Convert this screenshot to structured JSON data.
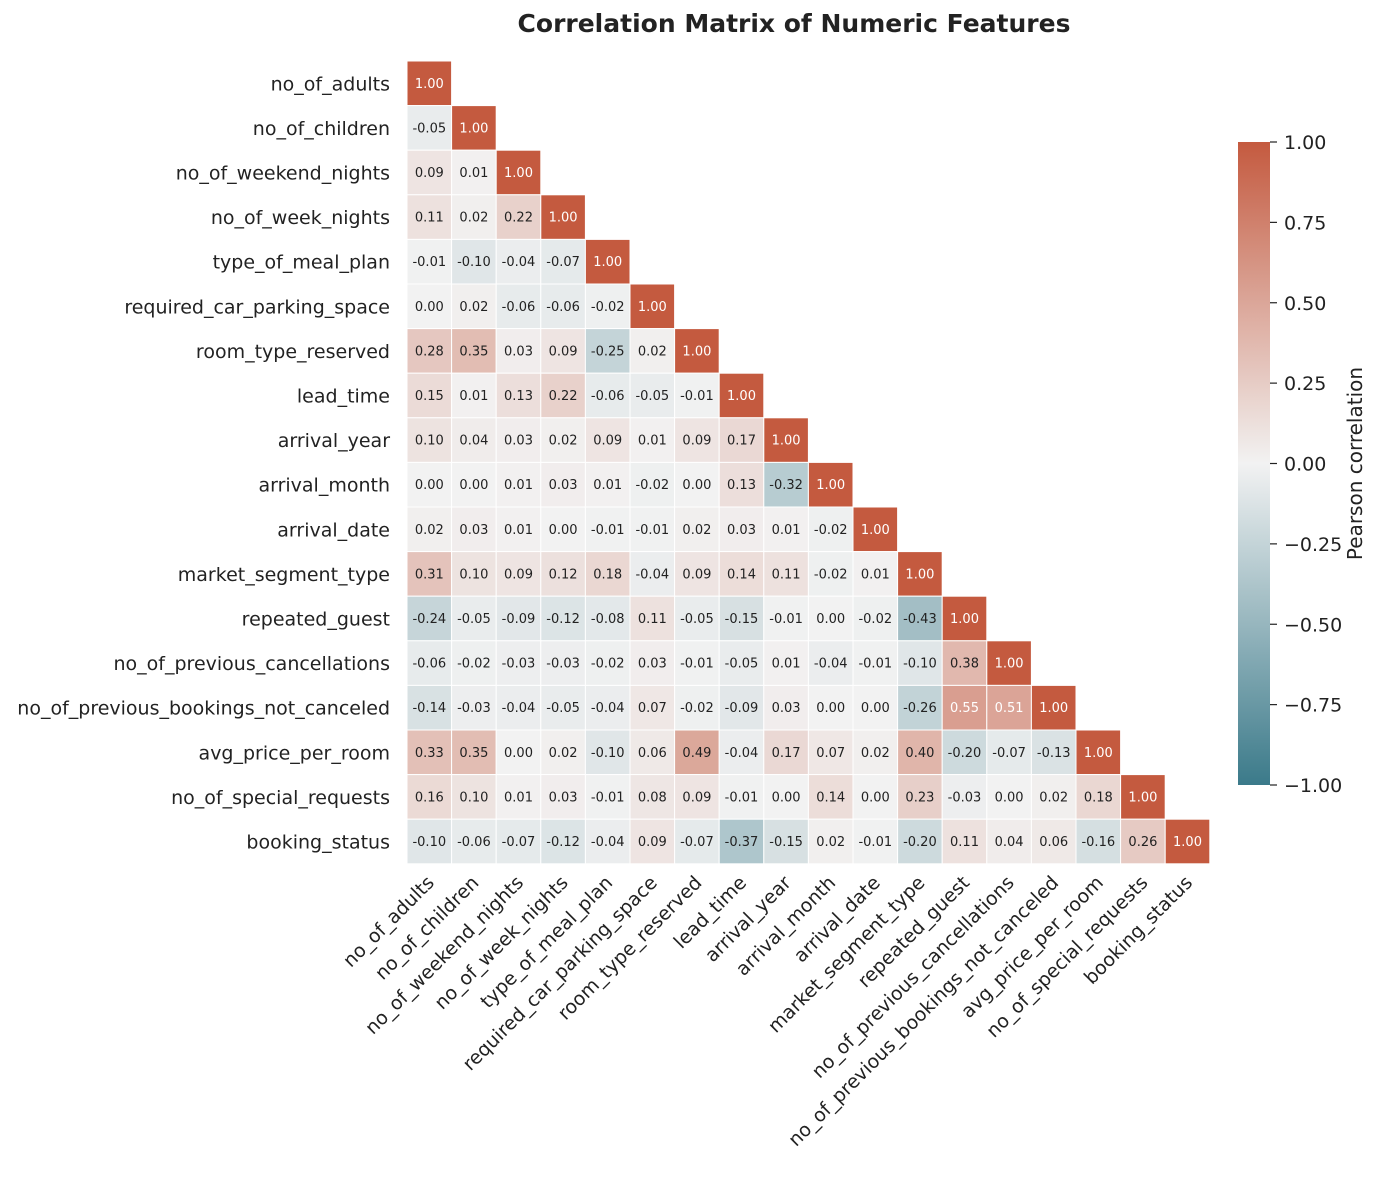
{
  "chart_data": {
    "type": "heatmap",
    "title": "Correlation Matrix of Numeric Features",
    "mask": "upper-triangle",
    "labels": [
      "no_of_adults",
      "no_of_children",
      "no_of_weekend_nights",
      "no_of_week_nights",
      "type_of_meal_plan",
      "required_car_parking_space",
      "room_type_reserved",
      "lead_time",
      "arrival_year",
      "arrival_month",
      "arrival_date",
      "market_segment_type",
      "repeated_guest",
      "no_of_previous_cancellations",
      "no_of_previous_bookings_not_canceled",
      "avg_price_per_room",
      "no_of_special_requests",
      "booking_status"
    ],
    "values": [
      [
        1.0
      ],
      [
        -0.05,
        1.0
      ],
      [
        0.09,
        0.01,
        1.0
      ],
      [
        0.11,
        0.02,
        0.22,
        1.0
      ],
      [
        -0.01,
        -0.1,
        -0.04,
        -0.07,
        1.0
      ],
      [
        0.0,
        0.02,
        -0.06,
        -0.06,
        -0.02,
        1.0
      ],
      [
        0.28,
        0.35,
        0.03,
        0.09,
        -0.25,
        0.02,
        1.0
      ],
      [
        0.15,
        0.01,
        0.13,
        0.22,
        -0.06,
        -0.05,
        -0.01,
        1.0
      ],
      [
        0.1,
        0.04,
        0.03,
        0.02,
        0.09,
        0.01,
        0.09,
        0.17,
        1.0
      ],
      [
        0.0,
        0.0,
        0.01,
        0.03,
        0.01,
        -0.02,
        0.0,
        0.13,
        -0.32,
        1.0
      ],
      [
        0.02,
        0.03,
        0.01,
        -0.0,
        -0.01,
        -0.01,
        0.02,
        0.03,
        0.01,
        -0.02,
        1.0
      ],
      [
        0.31,
        0.1,
        0.09,
        0.12,
        0.18,
        -0.04,
        0.09,
        0.14,
        0.11,
        -0.02,
        0.01,
        1.0
      ],
      [
        -0.24,
        -0.05,
        -0.09,
        -0.12,
        -0.08,
        0.11,
        -0.05,
        -0.15,
        -0.01,
        0.0,
        -0.02,
        -0.43,
        1.0
      ],
      [
        -0.06,
        -0.02,
        -0.03,
        -0.03,
        -0.02,
        0.03,
        -0.01,
        -0.05,
        0.01,
        -0.04,
        -0.01,
        -0.1,
        0.38,
        1.0
      ],
      [
        -0.14,
        -0.03,
        -0.04,
        -0.05,
        -0.04,
        0.07,
        -0.02,
        -0.09,
        0.03,
        -0.0,
        -0.0,
        -0.26,
        0.55,
        0.51,
        1.0
      ],
      [
        0.33,
        0.35,
        -0.0,
        0.02,
        -0.1,
        0.06,
        0.49,
        -0.04,
        0.17,
        0.07,
        0.02,
        0.4,
        -0.2,
        -0.07,
        -0.13,
        1.0
      ],
      [
        0.16,
        0.1,
        0.01,
        0.03,
        -0.01,
        0.08,
        0.09,
        -0.01,
        0.0,
        0.14,
        0.0,
        0.23,
        -0.03,
        -0.0,
        0.02,
        0.18,
        1.0
      ],
      [
        -0.1,
        -0.06,
        -0.07,
        -0.12,
        -0.04,
        0.09,
        -0.07,
        -0.37,
        -0.15,
        0.02,
        -0.01,
        -0.2,
        0.11,
        0.04,
        0.06,
        -0.16,
        0.26,
        1.0
      ]
    ],
    "colorbar": {
      "label": "Pearson correlation",
      "range": [
        -1,
        1
      ],
      "ticks": [
        "1.00",
        "0.75",
        "0.50",
        "0.25",
        "0.00",
        "−0.25",
        "−0.50",
        "−0.75",
        "−1.00"
      ],
      "colors": {
        "negative": "#3b7a8a",
        "neutral": "#f2f2f2",
        "positive": "#c45a3f"
      }
    },
    "grid": false,
    "legend_position": "right"
  }
}
